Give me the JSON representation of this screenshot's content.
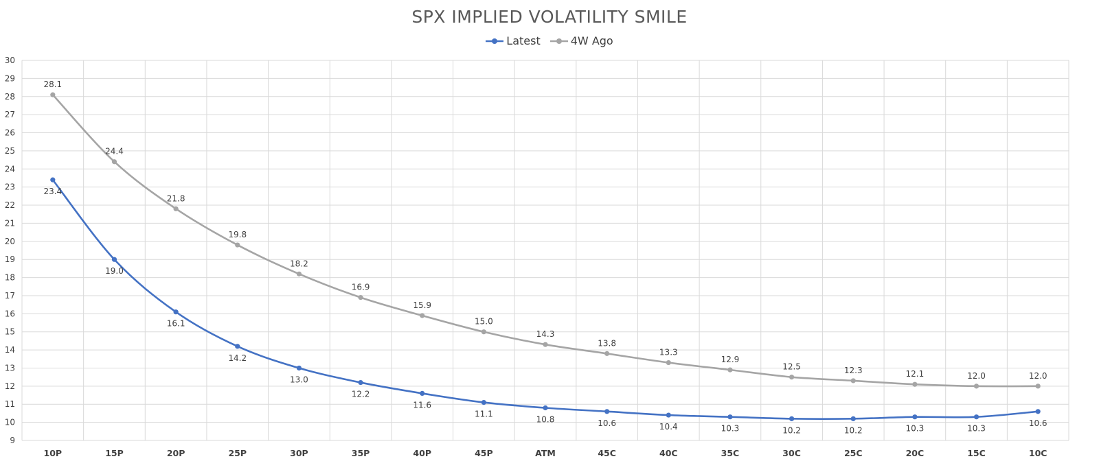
{
  "chart_data": {
    "type": "line",
    "title": "SPX IMPLIED VOLATILITY SMILE",
    "categories": [
      "10P",
      "15P",
      "20P",
      "25P",
      "30P",
      "35P",
      "40P",
      "45P",
      "ATM",
      "45C",
      "40C",
      "35C",
      "30C",
      "25C",
      "20C",
      "15C",
      "10C"
    ],
    "series": [
      {
        "name": "Latest",
        "color": "#4472C4",
        "values": [
          23.4,
          19.0,
          16.1,
          14.2,
          13.0,
          12.2,
          11.6,
          11.1,
          10.8,
          10.6,
          10.4,
          10.3,
          10.2,
          10.2,
          10.3,
          10.3,
          10.6
        ],
        "labels": [
          "23.4",
          "19.0",
          "16.1",
          "14.2",
          "13.0",
          "12.2",
          "11.6",
          "11.1",
          "10.8",
          "10.6",
          "10.4",
          "10.3",
          "10.2",
          "10.2",
          "10.3",
          "10.3",
          "10.6"
        ],
        "label_position": "below"
      },
      {
        "name": "4W Ago",
        "color": "#A5A5A5",
        "values": [
          28.1,
          24.4,
          21.8,
          19.8,
          18.2,
          16.9,
          15.9,
          15.0,
          14.3,
          13.8,
          13.3,
          12.9,
          12.5,
          12.3,
          12.1,
          12.0,
          12.0
        ],
        "labels": [
          "28.1",
          "24.4",
          "21.8",
          "19.8",
          "18.2",
          "16.9",
          "15.9",
          "15.0",
          "14.3",
          "13.8",
          "13.3",
          "12.9",
          "12.5",
          "12.3",
          "12.1",
          "12.0",
          "12.0"
        ],
        "label_position": "above"
      }
    ],
    "ylim": [
      9,
      30
    ],
    "yticks": [
      9,
      10,
      11,
      12,
      13,
      14,
      15,
      16,
      17,
      18,
      19,
      20,
      21,
      22,
      23,
      24,
      25,
      26,
      27,
      28,
      29,
      30
    ],
    "xlabel": "",
    "ylabel": "",
    "grid": true,
    "legend": "top-center"
  }
}
